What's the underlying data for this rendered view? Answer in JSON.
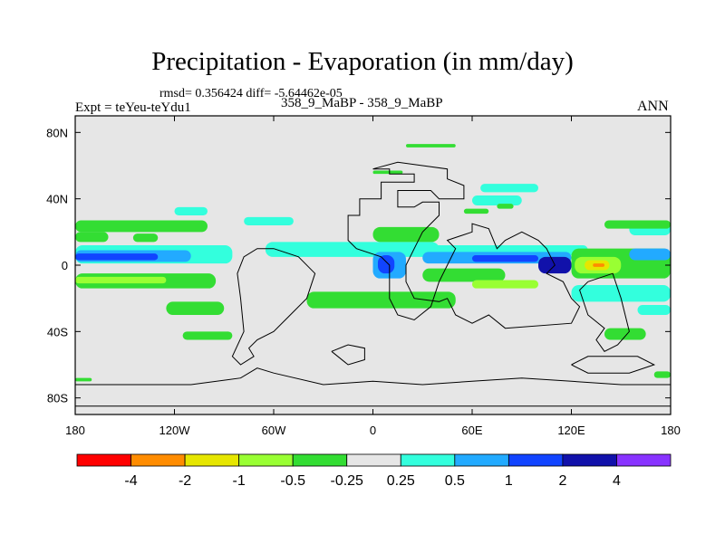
{
  "chart_data": {
    "type": "heatmap",
    "title": "Precipitation - Evaporation (in mm/day)",
    "stats": "rmsd= 0.356424 diff= -5.64462e-05",
    "experiment": "Expt = teYeu-teYdu1",
    "comparison": "358_9_MaBP - 358_9_MaBP",
    "season": "ANN",
    "xlim": [
      -180,
      180
    ],
    "ylim": [
      -90,
      90
    ],
    "x_ticks": [
      {
        "value": -180,
        "label": "180"
      },
      {
        "value": -120,
        "label": "120W"
      },
      {
        "value": -60,
        "label": "60W"
      },
      {
        "value": 0,
        "label": "0"
      },
      {
        "value": 60,
        "label": "60E"
      },
      {
        "value": 120,
        "label": "120E"
      },
      {
        "value": 180,
        "label": "180"
      }
    ],
    "y_ticks": [
      {
        "value": 80,
        "label": "80N"
      },
      {
        "value": 40,
        "label": "40N"
      },
      {
        "value": 0,
        "label": "0"
      },
      {
        "value": -40,
        "label": "40S"
      },
      {
        "value": -80,
        "label": "80S"
      }
    ],
    "colorbar": {
      "colors": [
        "#ff0000",
        "#ff8c00",
        "#e6e600",
        "#99ff33",
        "#33dd33",
        "#e6e6e6",
        "#33ffdd",
        "#22aaff",
        "#1144ff",
        "#1111aa",
        "#8833ff"
      ],
      "labels": [
        "-4",
        "-2",
        "-1",
        "-0.5",
        "-0.25",
        "0.25",
        "0.5",
        "1",
        "2",
        "4"
      ]
    },
    "anomaly_regions": [
      {
        "lon": [
          -180,
          -85
        ],
        "lat": [
          1,
          12
        ],
        "color": "#33ffdd"
      },
      {
        "lon": [
          -180,
          -110
        ],
        "lat": [
          2,
          9
        ],
        "color": "#22aaff"
      },
      {
        "lon": [
          -180,
          -130
        ],
        "lat": [
          3,
          7
        ],
        "color": "#1144ff"
      },
      {
        "lon": [
          -180,
          -95
        ],
        "lat": [
          -14,
          -5
        ],
        "color": "#33dd33"
      },
      {
        "lon": [
          -180,
          -125
        ],
        "lat": [
          -11,
          -7
        ],
        "color": "#99ff33"
      },
      {
        "lon": [
          -180,
          -100
        ],
        "lat": [
          20,
          27
        ],
        "color": "#33dd33"
      },
      {
        "lon": [
          -180,
          -160
        ],
        "lat": [
          14,
          20
        ],
        "color": "#33dd33"
      },
      {
        "lon": [
          -145,
          -130
        ],
        "lat": [
          14,
          19
        ],
        "color": "#33dd33"
      },
      {
        "lon": [
          -120,
          -100
        ],
        "lat": [
          30,
          35
        ],
        "color": "#33ffdd"
      },
      {
        "lon": [
          -78,
          -48
        ],
        "lat": [
          24,
          29
        ],
        "color": "#33ffdd"
      },
      {
        "lon": [
          -125,
          -90
        ],
        "lat": [
          -30,
          -22
        ],
        "color": "#33dd33"
      },
      {
        "lon": [
          -115,
          -85
        ],
        "lat": [
          -45,
          -40
        ],
        "color": "#33dd33"
      },
      {
        "lon": [
          -65,
          40
        ],
        "lat": [
          5,
          14
        ],
        "color": "#33ffdd"
      },
      {
        "lon": [
          -40,
          50
        ],
        "lat": [
          -26,
          -16
        ],
        "color": "#33dd33"
      },
      {
        "lon": [
          0,
          40
        ],
        "lat": [
          14,
          23
        ],
        "color": "#33dd33"
      },
      {
        "lon": [
          0,
          20
        ],
        "lat": [
          -8,
          8
        ],
        "color": "#22aaff"
      },
      {
        "lon": [
          3,
          13
        ],
        "lat": [
          -5,
          6
        ],
        "color": "#1144ff"
      },
      {
        "lon": [
          20,
          130
        ],
        "lat": [
          6,
          12
        ],
        "color": "#33ffdd"
      },
      {
        "lon": [
          30,
          120
        ],
        "lat": [
          1,
          8
        ],
        "color": "#22aaff"
      },
      {
        "lon": [
          60,
          100
        ],
        "lat": [
          2,
          6
        ],
        "color": "#1144ff"
      },
      {
        "lon": [
          30,
          80
        ],
        "lat": [
          -10,
          -2
        ],
        "color": "#33dd33"
      },
      {
        "lon": [
          60,
          100
        ],
        "lat": [
          -14,
          -9
        ],
        "color": "#99ff33"
      },
      {
        "lon": [
          0,
          18
        ],
        "lat": [
          55,
          57
        ],
        "color": "#33dd33"
      },
      {
        "lon": [
          20,
          50
        ],
        "lat": [
          71,
          73
        ],
        "color": "#33dd33"
      },
      {
        "lon": [
          60,
          90
        ],
        "lat": [
          36,
          42
        ],
        "color": "#33ffdd"
      },
      {
        "lon": [
          65,
          100
        ],
        "lat": [
          44,
          49
        ],
        "color": "#33ffdd"
      },
      {
        "lon": [
          55,
          70
        ],
        "lat": [
          31,
          34
        ],
        "color": "#33dd33"
      },
      {
        "lon": [
          75,
          85
        ],
        "lat": [
          34,
          37
        ],
        "color": "#33dd33"
      },
      {
        "lon": [
          120,
          180
        ],
        "lat": [
          -8,
          10
        ],
        "color": "#33dd33"
      },
      {
        "lon": [
          122,
          150
        ],
        "lat": [
          -5,
          5
        ],
        "color": "#99ff33"
      },
      {
        "lon": [
          128,
          143
        ],
        "lat": [
          -3,
          3
        ],
        "color": "#e6e600"
      },
      {
        "lon": [
          133,
          140
        ],
        "lat": [
          -1,
          1
        ],
        "color": "#ff8c00"
      },
      {
        "lon": [
          120,
          180
        ],
        "lat": [
          -22,
          -12
        ],
        "color": "#33ffdd"
      },
      {
        "lon": [
          100,
          120
        ],
        "lat": [
          -5,
          5
        ],
        "color": "#1111aa"
      },
      {
        "lon": [
          155,
          180
        ],
        "lat": [
          3,
          10
        ],
        "color": "#22aaff"
      },
      {
        "lon": [
          155,
          180
        ],
        "lat": [
          18,
          25
        ],
        "color": "#33ffdd"
      },
      {
        "lon": [
          140,
          180
        ],
        "lat": [
          22,
          27
        ],
        "color": "#33dd33"
      },
      {
        "lon": [
          140,
          165
        ],
        "lat": [
          -45,
          -38
        ],
        "color": "#33dd33"
      },
      {
        "lon": [
          160,
          180
        ],
        "lat": [
          -30,
          -24
        ],
        "color": "#33ffdd"
      },
      {
        "lon": [
          -180,
          -170
        ],
        "lat": [
          -70,
          -68
        ],
        "color": "#33dd33"
      },
      {
        "lon": [
          170,
          180
        ],
        "lat": [
          -68,
          -64
        ],
        "color": "#33dd33"
      }
    ],
    "coastlines": [
      [
        [
          0,
          58
        ],
        [
          10,
          58
        ],
        [
          10,
          55
        ],
        [
          25,
          55
        ],
        [
          25,
          50
        ],
        [
          5,
          50
        ],
        [
          5,
          40
        ],
        [
          -8,
          40
        ],
        [
          -8,
          30
        ],
        [
          -15,
          30
        ],
        [
          -15,
          15
        ],
        [
          -10,
          10
        ],
        [
          5,
          5
        ],
        [
          10,
          0
        ],
        [
          10,
          -20
        ],
        [
          15,
          -30
        ],
        [
          25,
          -33
        ],
        [
          35,
          -25
        ],
        [
          40,
          -10
        ],
        [
          45,
          0
        ],
        [
          50,
          10
        ],
        [
          45,
          15
        ],
        [
          60,
          20
        ],
        [
          60,
          25
        ],
        [
          70,
          22
        ],
        [
          75,
          10
        ],
        [
          80,
          15
        ],
        [
          90,
          20
        ],
        [
          100,
          15
        ],
        [
          105,
          10
        ],
        [
          110,
          0
        ],
        [
          105,
          -5
        ],
        [
          115,
          -10
        ],
        [
          120,
          -20
        ],
        [
          125,
          -25
        ],
        [
          120,
          -35
        ],
        [
          80,
          -38
        ],
        [
          70,
          -30
        ],
        [
          60,
          -35
        ],
        [
          50,
          -30
        ],
        [
          45,
          -20
        ],
        [
          40,
          -22
        ],
        [
          25,
          -20
        ],
        [
          20,
          -10
        ],
        [
          20,
          0
        ],
        [
          25,
          10
        ],
        [
          30,
          20
        ],
        [
          40,
          30
        ],
        [
          40,
          38
        ],
        [
          30,
          38
        ],
        [
          25,
          35
        ],
        [
          15,
          35
        ],
        [
          15,
          45
        ],
        [
          35,
          45
        ],
        [
          40,
          40
        ],
        [
          55,
          40
        ],
        [
          55,
          48
        ],
        [
          45,
          52
        ],
        [
          45,
          58
        ],
        [
          30,
          60
        ],
        [
          15,
          62
        ],
        [
          0,
          58
        ]
      ],
      [
        [
          -60,
          10
        ],
        [
          -45,
          5
        ],
        [
          -35,
          -5
        ],
        [
          -40,
          -20
        ],
        [
          -50,
          -30
        ],
        [
          -60,
          -40
        ],
        [
          -70,
          -45
        ],
        [
          -75,
          -50
        ],
        [
          -72,
          -55
        ],
        [
          -80,
          -60
        ],
        [
          -85,
          -55
        ],
        [
          -78,
          -40
        ],
        [
          -80,
          -20
        ],
        [
          -82,
          -5
        ],
        [
          -78,
          5
        ],
        [
          -70,
          10
        ],
        [
          -60,
          10
        ]
      ],
      [
        [
          -25,
          -52
        ],
        [
          -15,
          -48
        ],
        [
          -5,
          -50
        ],
        [
          -5,
          -57
        ],
        [
          -15,
          -60
        ],
        [
          -25,
          -52
        ]
      ],
      [
        [
          -180,
          -72
        ],
        [
          -110,
          -72
        ],
        [
          -80,
          -68
        ],
        [
          -70,
          -62
        ],
        [
          -60,
          -65
        ],
        [
          -30,
          -72
        ],
        [
          0,
          -70
        ],
        [
          30,
          -72
        ],
        [
          60,
          -70
        ],
        [
          90,
          -68
        ],
        [
          120,
          -70
        ],
        [
          150,
          -72
        ],
        [
          180,
          -72
        ],
        [
          180,
          -85
        ],
        [
          -180,
          -85
        ],
        [
          -180,
          -72
        ]
      ],
      [
        [
          130,
          -10
        ],
        [
          145,
          -5
        ],
        [
          150,
          -20
        ],
        [
          155,
          -40
        ],
        [
          148,
          -48
        ],
        [
          140,
          -52
        ],
        [
          135,
          -45
        ],
        [
          140,
          -38
        ],
        [
          130,
          -30
        ],
        [
          125,
          -15
        ],
        [
          130,
          -10
        ]
      ],
      [
        [
          120,
          -60
        ],
        [
          130,
          -55
        ],
        [
          160,
          -55
        ],
        [
          170,
          -60
        ],
        [
          155,
          -65
        ],
        [
          130,
          -65
        ],
        [
          120,
          -60
        ]
      ]
    ]
  }
}
